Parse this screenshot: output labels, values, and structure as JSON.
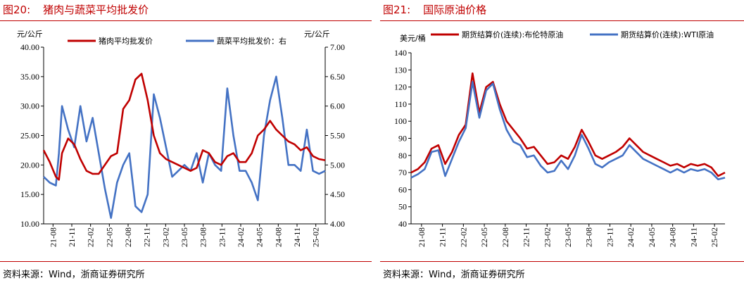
{
  "left": {
    "figure_number": "图20:",
    "figure_title": "猪肉与蔬菜平均批发价",
    "source": "资料来源：Wind，浙商证券研究所",
    "chart_data": {
      "type": "line",
      "title": "",
      "left_unit": "元/公斤",
      "right_unit": "元/公斤",
      "ylim_left": [
        10,
        40
      ],
      "ylim_right": [
        4,
        7
      ],
      "yticks_left": [
        "10.00",
        "15.00",
        "20.00",
        "25.00",
        "30.00",
        "35.00",
        "40.00"
      ],
      "yticks_right": [
        "4.00",
        "4.50",
        "5.00",
        "5.50",
        "6.00",
        "6.50",
        "7.00"
      ],
      "xticks": [
        "21-08",
        "21-11",
        "22-02",
        "22-05",
        "22-08",
        "22-11",
        "23-02",
        "23-05",
        "23-08",
        "23-11",
        "24-02",
        "24-05",
        "24-08",
        "24-11",
        "25-02"
      ],
      "x_range": [
        0,
        46
      ],
      "grid": false,
      "legend_position": "top",
      "series": [
        {
          "name": "猪肉平均批发价",
          "axis": "left",
          "color": "#c00000",
          "x": [
            0,
            1,
            2,
            2.5,
            3,
            4,
            5,
            6,
            7,
            8,
            9,
            10,
            11,
            12,
            13,
            14,
            15,
            16,
            17,
            18,
            19,
            20,
            21,
            22,
            23,
            24,
            25,
            26,
            27,
            28,
            29,
            30,
            31,
            32,
            33,
            34,
            35,
            36,
            37,
            38,
            39,
            40,
            41,
            42,
            43,
            44,
            45,
            46
          ],
          "values": [
            22.5,
            20.5,
            18,
            17.5,
            22,
            24.5,
            23.5,
            21,
            19,
            18.5,
            18.5,
            20,
            21.5,
            22,
            29.5,
            31,
            34.5,
            35.5,
            31,
            25,
            22,
            21,
            20.5,
            20,
            19.5,
            19,
            19.5,
            22.5,
            22,
            20.5,
            20,
            21.5,
            22,
            20.5,
            20.5,
            22,
            25,
            26,
            27.5,
            26,
            25,
            24,
            23.5,
            22.5,
            23,
            21.5,
            21,
            20.8
          ]
        },
        {
          "name": "蔬菜平均批发价：右",
          "axis": "right",
          "color": "#4472c4",
          "x": [
            0,
            1,
            2,
            2.5,
            3,
            4,
            5,
            6,
            7,
            8,
            9,
            10,
            11,
            12,
            13,
            14,
            15,
            16,
            17,
            18,
            19,
            20,
            21,
            22,
            23,
            24,
            25,
            26,
            27,
            28,
            29,
            30,
            31,
            32,
            33,
            34,
            35,
            36,
            37,
            38,
            39,
            40,
            41,
            42,
            43,
            44,
            45,
            46
          ],
          "values": [
            4.8,
            4.7,
            4.65,
            5.2,
            6.0,
            5.6,
            5.3,
            6.0,
            5.4,
            5.8,
            5.2,
            4.6,
            4.1,
            4.7,
            5.0,
            5.2,
            4.3,
            4.2,
            4.5,
            6.2,
            5.8,
            5.3,
            4.8,
            4.9,
            5.0,
            4.9,
            5.2,
            4.7,
            5.2,
            5.0,
            4.9,
            6.3,
            5.5,
            4.9,
            4.9,
            4.7,
            4.4,
            5.5,
            6.1,
            6.5,
            5.8,
            5.0,
            5.0,
            4.9,
            5.6,
            4.9,
            4.85,
            4.9
          ]
        }
      ]
    }
  },
  "right": {
    "figure_number": "图21:",
    "figure_title": "国际原油价格",
    "source": "资料来源：Wind，浙商证券研究所",
    "chart_data": {
      "type": "line",
      "title": "",
      "unit": "美元/桶",
      "ylim": [
        40,
        140
      ],
      "yticks": [
        "40",
        "50",
        "60",
        "70",
        "80",
        "90",
        "100",
        "110",
        "120",
        "130",
        "140"
      ],
      "xticks": [
        "21-08",
        "21-11",
        "22-02",
        "22-05",
        "22-08",
        "22-11",
        "23-02",
        "23-05",
        "23-08",
        "23-11",
        "24-02",
        "24-05",
        "24-08",
        "24-11",
        "25-02"
      ],
      "x_range": [
        0,
        46
      ],
      "grid": false,
      "legend_position": "top",
      "series": [
        {
          "name": "期货结算价(连续):布伦特原油",
          "color": "#c00000",
          "x": [
            0,
            1,
            2,
            3,
            4,
            5,
            6,
            7,
            8,
            9,
            10,
            11,
            12,
            13,
            14,
            15,
            16,
            17,
            18,
            19,
            20,
            21,
            22,
            23,
            24,
            25,
            26,
            27,
            28,
            29,
            30,
            31,
            32,
            33,
            34,
            35,
            36,
            37,
            38,
            39,
            40,
            41,
            42,
            43,
            44,
            45,
            46
          ],
          "values": [
            70,
            72,
            76,
            84,
            86,
            75,
            82,
            92,
            98,
            128,
            105,
            120,
            123,
            110,
            100,
            95,
            90,
            84,
            85,
            80,
            75,
            76,
            80,
            78,
            85,
            95,
            88,
            80,
            78,
            80,
            82,
            85,
            90,
            86,
            82,
            80,
            78,
            76,
            74,
            75,
            73,
            75,
            74,
            75,
            73,
            68,
            70
          ]
        },
        {
          "name": "期货结算价(连续):WTI原油",
          "color": "#4472c4",
          "x": [
            0,
            1,
            2,
            3,
            4,
            5,
            6,
            7,
            8,
            9,
            10,
            11,
            12,
            13,
            14,
            15,
            16,
            17,
            18,
            19,
            20,
            21,
            22,
            23,
            24,
            25,
            26,
            27,
            28,
            29,
            30,
            31,
            32,
            33,
            34,
            35,
            36,
            37,
            38,
            39,
            40,
            41,
            42,
            43,
            44,
            45,
            46
          ],
          "values": [
            67,
            69,
            72,
            82,
            83,
            68,
            78,
            88,
            96,
            123,
            102,
            118,
            122,
            107,
            95,
            88,
            86,
            79,
            80,
            74,
            70,
            71,
            77,
            72,
            80,
            92,
            84,
            75,
            73,
            76,
            78,
            80,
            86,
            82,
            78,
            76,
            74,
            72,
            70,
            72,
            70,
            72,
            71,
            72,
            70,
            66,
            67
          ]
        }
      ]
    }
  }
}
